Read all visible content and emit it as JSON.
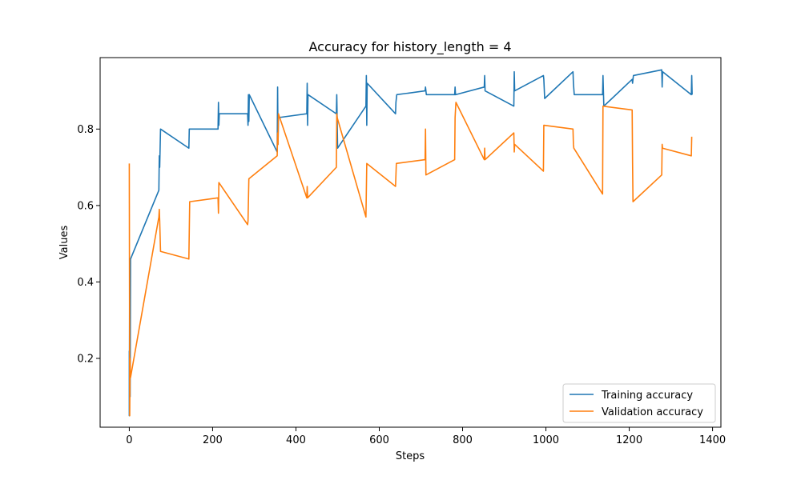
{
  "chart_data": {
    "type": "line",
    "title": "Accuracy for history_length = 4",
    "xlabel": "Steps",
    "ylabel": "Values",
    "xlim": [
      -70,
      1420
    ],
    "ylim": [
      0.02,
      0.987
    ],
    "xticks": [
      0,
      200,
      400,
      600,
      800,
      1000,
      1200,
      1400
    ],
    "xtick_labels": [
      "0",
      "200",
      "400",
      "600",
      "800",
      "1000",
      "1200",
      "1400"
    ],
    "yticks": [
      0.2,
      0.4,
      0.6,
      0.8
    ],
    "ytick_labels": [
      "0.2",
      "0.4",
      "0.6",
      "0.8"
    ],
    "grid": false,
    "legend_position": "lower-right",
    "series": [
      {
        "name": "Training accuracy",
        "color": "#1f77b4",
        "points": [
          [
            0,
            0.22
          ],
          [
            0,
            0.05
          ],
          [
            1,
            0.43
          ],
          [
            2,
            0.1
          ],
          [
            3,
            0.46
          ],
          [
            71,
            0.64
          ],
          [
            72,
            0.73
          ],
          [
            73,
            0.7
          ],
          [
            75,
            0.8
          ],
          [
            143,
            0.75
          ],
          [
            144,
            0.8
          ],
          [
            213,
            0.8
          ],
          [
            214,
            0.87
          ],
          [
            215,
            0.81
          ],
          [
            216,
            0.84
          ],
          [
            284,
            0.84
          ],
          [
            285,
            0.81
          ],
          [
            286,
            0.89
          ],
          [
            287,
            0.82
          ],
          [
            288,
            0.89
          ],
          [
            355,
            0.74
          ],
          [
            356,
            0.91
          ],
          [
            357,
            0.76
          ],
          [
            358,
            0.83
          ],
          [
            426,
            0.84
          ],
          [
            427,
            0.92
          ],
          [
            428,
            0.81
          ],
          [
            429,
            0.89
          ],
          [
            497,
            0.84
          ],
          [
            498,
            0.89
          ],
          [
            500,
            0.75
          ],
          [
            568,
            0.86
          ],
          [
            569,
            0.94
          ],
          [
            570,
            0.81
          ],
          [
            571,
            0.92
          ],
          [
            639,
            0.84
          ],
          [
            640,
            0.87
          ],
          [
            642,
            0.89
          ],
          [
            710,
            0.9
          ],
          [
            711,
            0.91
          ],
          [
            713,
            0.89
          ],
          [
            781,
            0.89
          ],
          [
            782,
            0.91
          ],
          [
            783,
            0.89
          ],
          [
            852,
            0.91
          ],
          [
            853,
            0.94
          ],
          [
            854,
            0.9
          ],
          [
            923,
            0.86
          ],
          [
            924,
            0.95
          ],
          [
            925,
            0.9
          ],
          [
            994,
            0.94
          ],
          [
            995,
            0.93
          ],
          [
            997,
            0.88
          ],
          [
            1065,
            0.95
          ],
          [
            1066,
            0.92
          ],
          [
            1068,
            0.89
          ],
          [
            1136,
            0.89
          ],
          [
            1137,
            0.94
          ],
          [
            1139,
            0.86
          ],
          [
            1207,
            0.93
          ],
          [
            1208,
            0.92
          ],
          [
            1210,
            0.94
          ],
          [
            1278,
            0.955
          ],
          [
            1279,
            0.91
          ],
          [
            1280,
            0.95
          ],
          [
            1349,
            0.89
          ],
          [
            1350,
            0.94
          ],
          [
            1351,
            0.89
          ]
        ]
      },
      {
        "name": "Validation accuracy",
        "color": "#ff7f0e",
        "points": [
          [
            0,
            0.71
          ],
          [
            1,
            0.05
          ],
          [
            2,
            0.2
          ],
          [
            3,
            0.15
          ],
          [
            71,
            0.57
          ],
          [
            72,
            0.59
          ],
          [
            73,
            0.56
          ],
          [
            75,
            0.48
          ],
          [
            143,
            0.46
          ],
          [
            145,
            0.61
          ],
          [
            213,
            0.62
          ],
          [
            214,
            0.58
          ],
          [
            215,
            0.66
          ],
          [
            284,
            0.55
          ],
          [
            285,
            0.56
          ],
          [
            287,
            0.67
          ],
          [
            355,
            0.73
          ],
          [
            356,
            0.79
          ],
          [
            357,
            0.76
          ],
          [
            358,
            0.84
          ],
          [
            426,
            0.62
          ],
          [
            427,
            0.65
          ],
          [
            428,
            0.62
          ],
          [
            497,
            0.7
          ],
          [
            498,
            0.84
          ],
          [
            499,
            0.83
          ],
          [
            568,
            0.57
          ],
          [
            570,
            0.71
          ],
          [
            639,
            0.65
          ],
          [
            640,
            0.68
          ],
          [
            641,
            0.71
          ],
          [
            710,
            0.72
          ],
          [
            711,
            0.8
          ],
          [
            712,
            0.68
          ],
          [
            781,
            0.72
          ],
          [
            782,
            0.83
          ],
          [
            784,
            0.87
          ],
          [
            852,
            0.72
          ],
          [
            853,
            0.75
          ],
          [
            854,
            0.72
          ],
          [
            923,
            0.79
          ],
          [
            924,
            0.74
          ],
          [
            925,
            0.76
          ],
          [
            994,
            0.69
          ],
          [
            995,
            0.81
          ],
          [
            1065,
            0.8
          ],
          [
            1066,
            0.76
          ],
          [
            1067,
            0.75
          ],
          [
            1136,
            0.63
          ],
          [
            1137,
            0.86
          ],
          [
            1207,
            0.85
          ],
          [
            1208,
            0.71
          ],
          [
            1209,
            0.61
          ],
          [
            1278,
            0.68
          ],
          [
            1279,
            0.76
          ],
          [
            1280,
            0.75
          ],
          [
            1349,
            0.73
          ],
          [
            1350,
            0.78
          ]
        ]
      }
    ]
  }
}
